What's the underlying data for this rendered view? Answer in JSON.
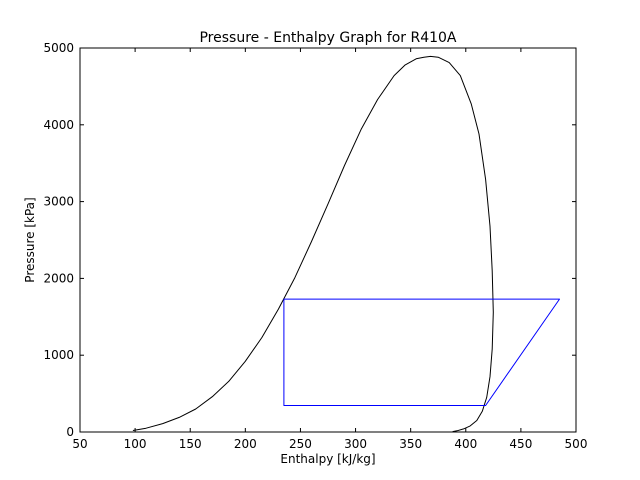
{
  "chart_data": {
    "type": "line",
    "title": "Pressure - Enthalpy Graph for R410A",
    "xlabel": "Enthalpy [kJ/kg]",
    "ylabel": "Pressure [kPa]",
    "xlim": [
      50,
      500
    ],
    "ylim": [
      0,
      5000
    ],
    "xticks": [
      "50",
      "100",
      "150",
      "200",
      "250",
      "300",
      "350",
      "400",
      "450",
      "500"
    ],
    "yticks": [
      "0",
      "1000",
      "2000",
      "3000",
      "4000",
      "5000"
    ],
    "grid": false,
    "legend": "none",
    "series": [
      {
        "color": "#000000",
        "x": [
          98,
          110,
          125,
          140,
          155,
          170,
          185,
          200,
          215,
          230,
          245,
          260,
          275,
          290,
          305,
          320,
          335,
          345,
          355,
          362,
          368,
          375,
          385,
          395,
          405,
          412,
          418,
          422,
          424,
          425,
          424,
          422,
          419,
          415,
          410,
          404,
          398,
          392,
          388
        ],
        "y": [
          20,
          50,
          110,
          190,
          300,
          460,
          660,
          920,
          1230,
          1600,
          2010,
          2480,
          2970,
          3470,
          3940,
          4330,
          4640,
          4780,
          4860,
          4880,
          4890,
          4880,
          4810,
          4640,
          4270,
          3880,
          3290,
          2680,
          2100,
          1560,
          1080,
          720,
          450,
          270,
          150,
          80,
          40,
          15,
          5
        ]
      },
      {
        "color": "#0000ff",
        "x": [
          235,
          235,
          418,
          485,
          235
        ],
        "y": [
          1730,
          345,
          345,
          1730,
          1730
        ]
      }
    ]
  }
}
